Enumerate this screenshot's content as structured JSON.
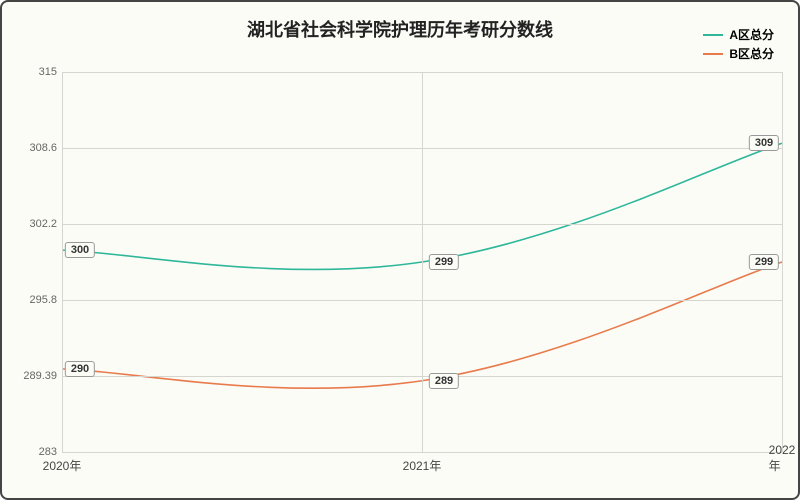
{
  "chart": {
    "type": "line",
    "title": "湖北省社会科学院护理历年考研分数线",
    "title_fontsize": 18,
    "background_color": "#fcfcf7",
    "border_color": "#444444",
    "grid_color": "#d6d6d0",
    "xlabels": [
      "2020年",
      "2021年",
      "2022年"
    ],
    "ylim": [
      283,
      315
    ],
    "yticks": [
      283,
      289.39,
      295.8,
      302.2,
      308.6,
      315
    ],
    "yticklabels": [
      "283",
      "289.39",
      "295.8",
      "302.2",
      "308.6",
      "315"
    ],
    "label_fontsize": 11,
    "series": [
      {
        "name": "A区总分",
        "color": "#2fb79a",
        "values": [
          300,
          299,
          309
        ],
        "labels": [
          "300",
          "299",
          "309"
        ]
      },
      {
        "name": "B区总分",
        "color": "#e87b4c",
        "values": [
          290,
          289,
          299
        ],
        "labels": [
          "290",
          "289",
          "299"
        ]
      }
    ],
    "legend_position": "top-right",
    "line_width": 1.6
  }
}
